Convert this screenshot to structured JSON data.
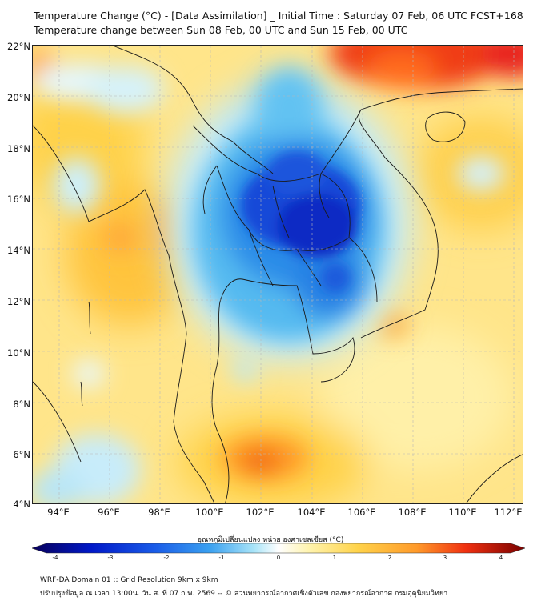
{
  "title": {
    "line1": "Temperature Change (°C) - [Data Assimilation] _ Initial Time : Saturday 07 Feb, 06 UTC FCST+168",
    "line2": "Temperature change between Sun 08 Feb, 00 UTC and Sun 15 Feb, 00 UTC"
  },
  "map": {
    "lat_labels": [
      "22°N",
      "20°N",
      "18°N",
      "16°N",
      "14°N",
      "12°N",
      "10°N",
      "8°N",
      "6°N",
      "4°N"
    ],
    "lon_labels": [
      "94°E",
      "96°E",
      "98°E",
      "100°E",
      "102°E",
      "104°E",
      "106°E",
      "108°E",
      "110°E",
      "112°E"
    ],
    "lat_range": [
      4,
      22
    ],
    "lon_range": [
      93,
      112.5
    ]
  },
  "colorbar": {
    "title": "อุณหภูมิเปลี่ยนแปลง หน่วย องศาเซลเซียส (°C)",
    "ticks": [
      "-4",
      "-3",
      "-2",
      "-1",
      "0",
      "1",
      "2",
      "3",
      "4"
    ],
    "range": [
      -4,
      4
    ],
    "colors": [
      "#08005a",
      "#0018c8",
      "#1a5ce8",
      "#3aa0f0",
      "#a8e4f8",
      "#ffffff",
      "#fff4b0",
      "#ffd34a",
      "#ff9a2a",
      "#f03010",
      "#780000"
    ]
  },
  "footer": {
    "line1": "WRF-DA Domain 01 :: Grid Resolution 9km x 9km",
    "line2": "ปรับปรุงข้อมูล ณ เวลา 13:00น. วัน ส. ที่ 07 ก.พ. 2569 -- © ส่วนพยากรณ์อากาศเชิงตัวเลข กองพยากรณ์อากาศ กรมอุตุนิยมวิทยา"
  }
}
